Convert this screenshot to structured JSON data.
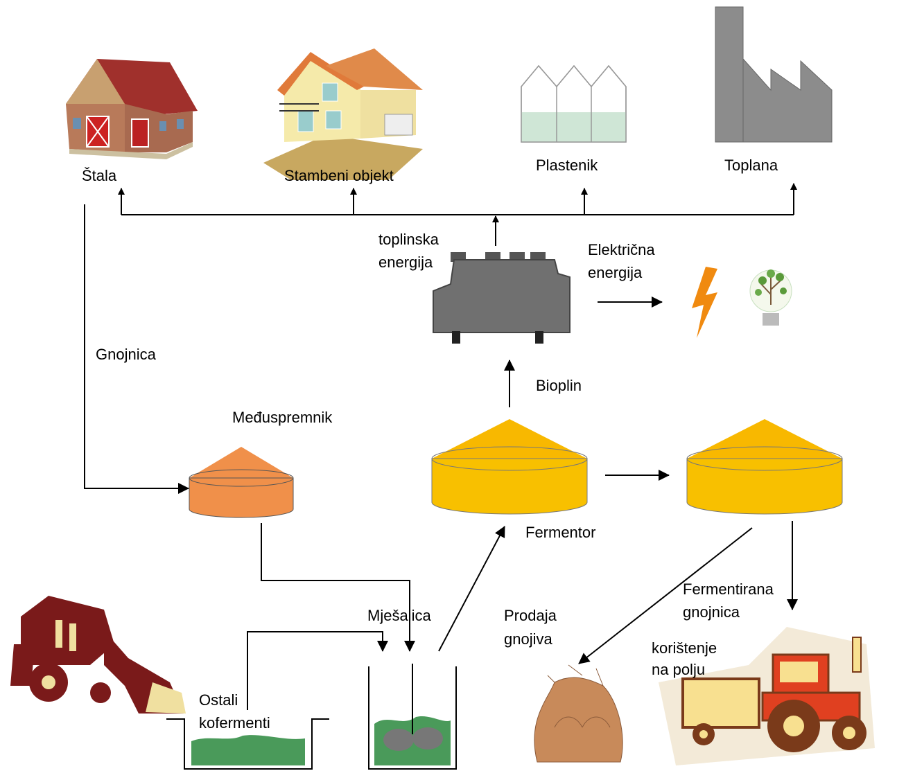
{
  "nodes": {
    "stala": {
      "label": "Štala"
    },
    "stambeni": {
      "label": "Stambeni objekt"
    },
    "plastenik": {
      "label": "Plastenik"
    },
    "toplana": {
      "label": "Toplana"
    },
    "toplinska": {
      "lines": [
        "toplinska",
        "energija"
      ]
    },
    "elektricna": {
      "lines": [
        "Električna",
        "energija"
      ]
    },
    "gnojnica": {
      "label": "Gnojnica"
    },
    "bioplin": {
      "label": "Bioplin"
    },
    "meduspremnik": {
      "label": "Međuspremnik"
    },
    "fermentor": {
      "label": "Fermentor"
    },
    "mjesalica": {
      "label": "Mješalica"
    },
    "prodaja": {
      "lines": [
        "Prodaja",
        "gnojiva"
      ]
    },
    "fermentirana": {
      "lines": [
        "Fermentirana",
        "gnojnica"
      ]
    },
    "koristenje": {
      "lines": [
        "korištenje",
        "na polju"
      ]
    },
    "ostali": {
      "lines": [
        "Ostali",
        "kofermenti"
      ]
    }
  }
}
